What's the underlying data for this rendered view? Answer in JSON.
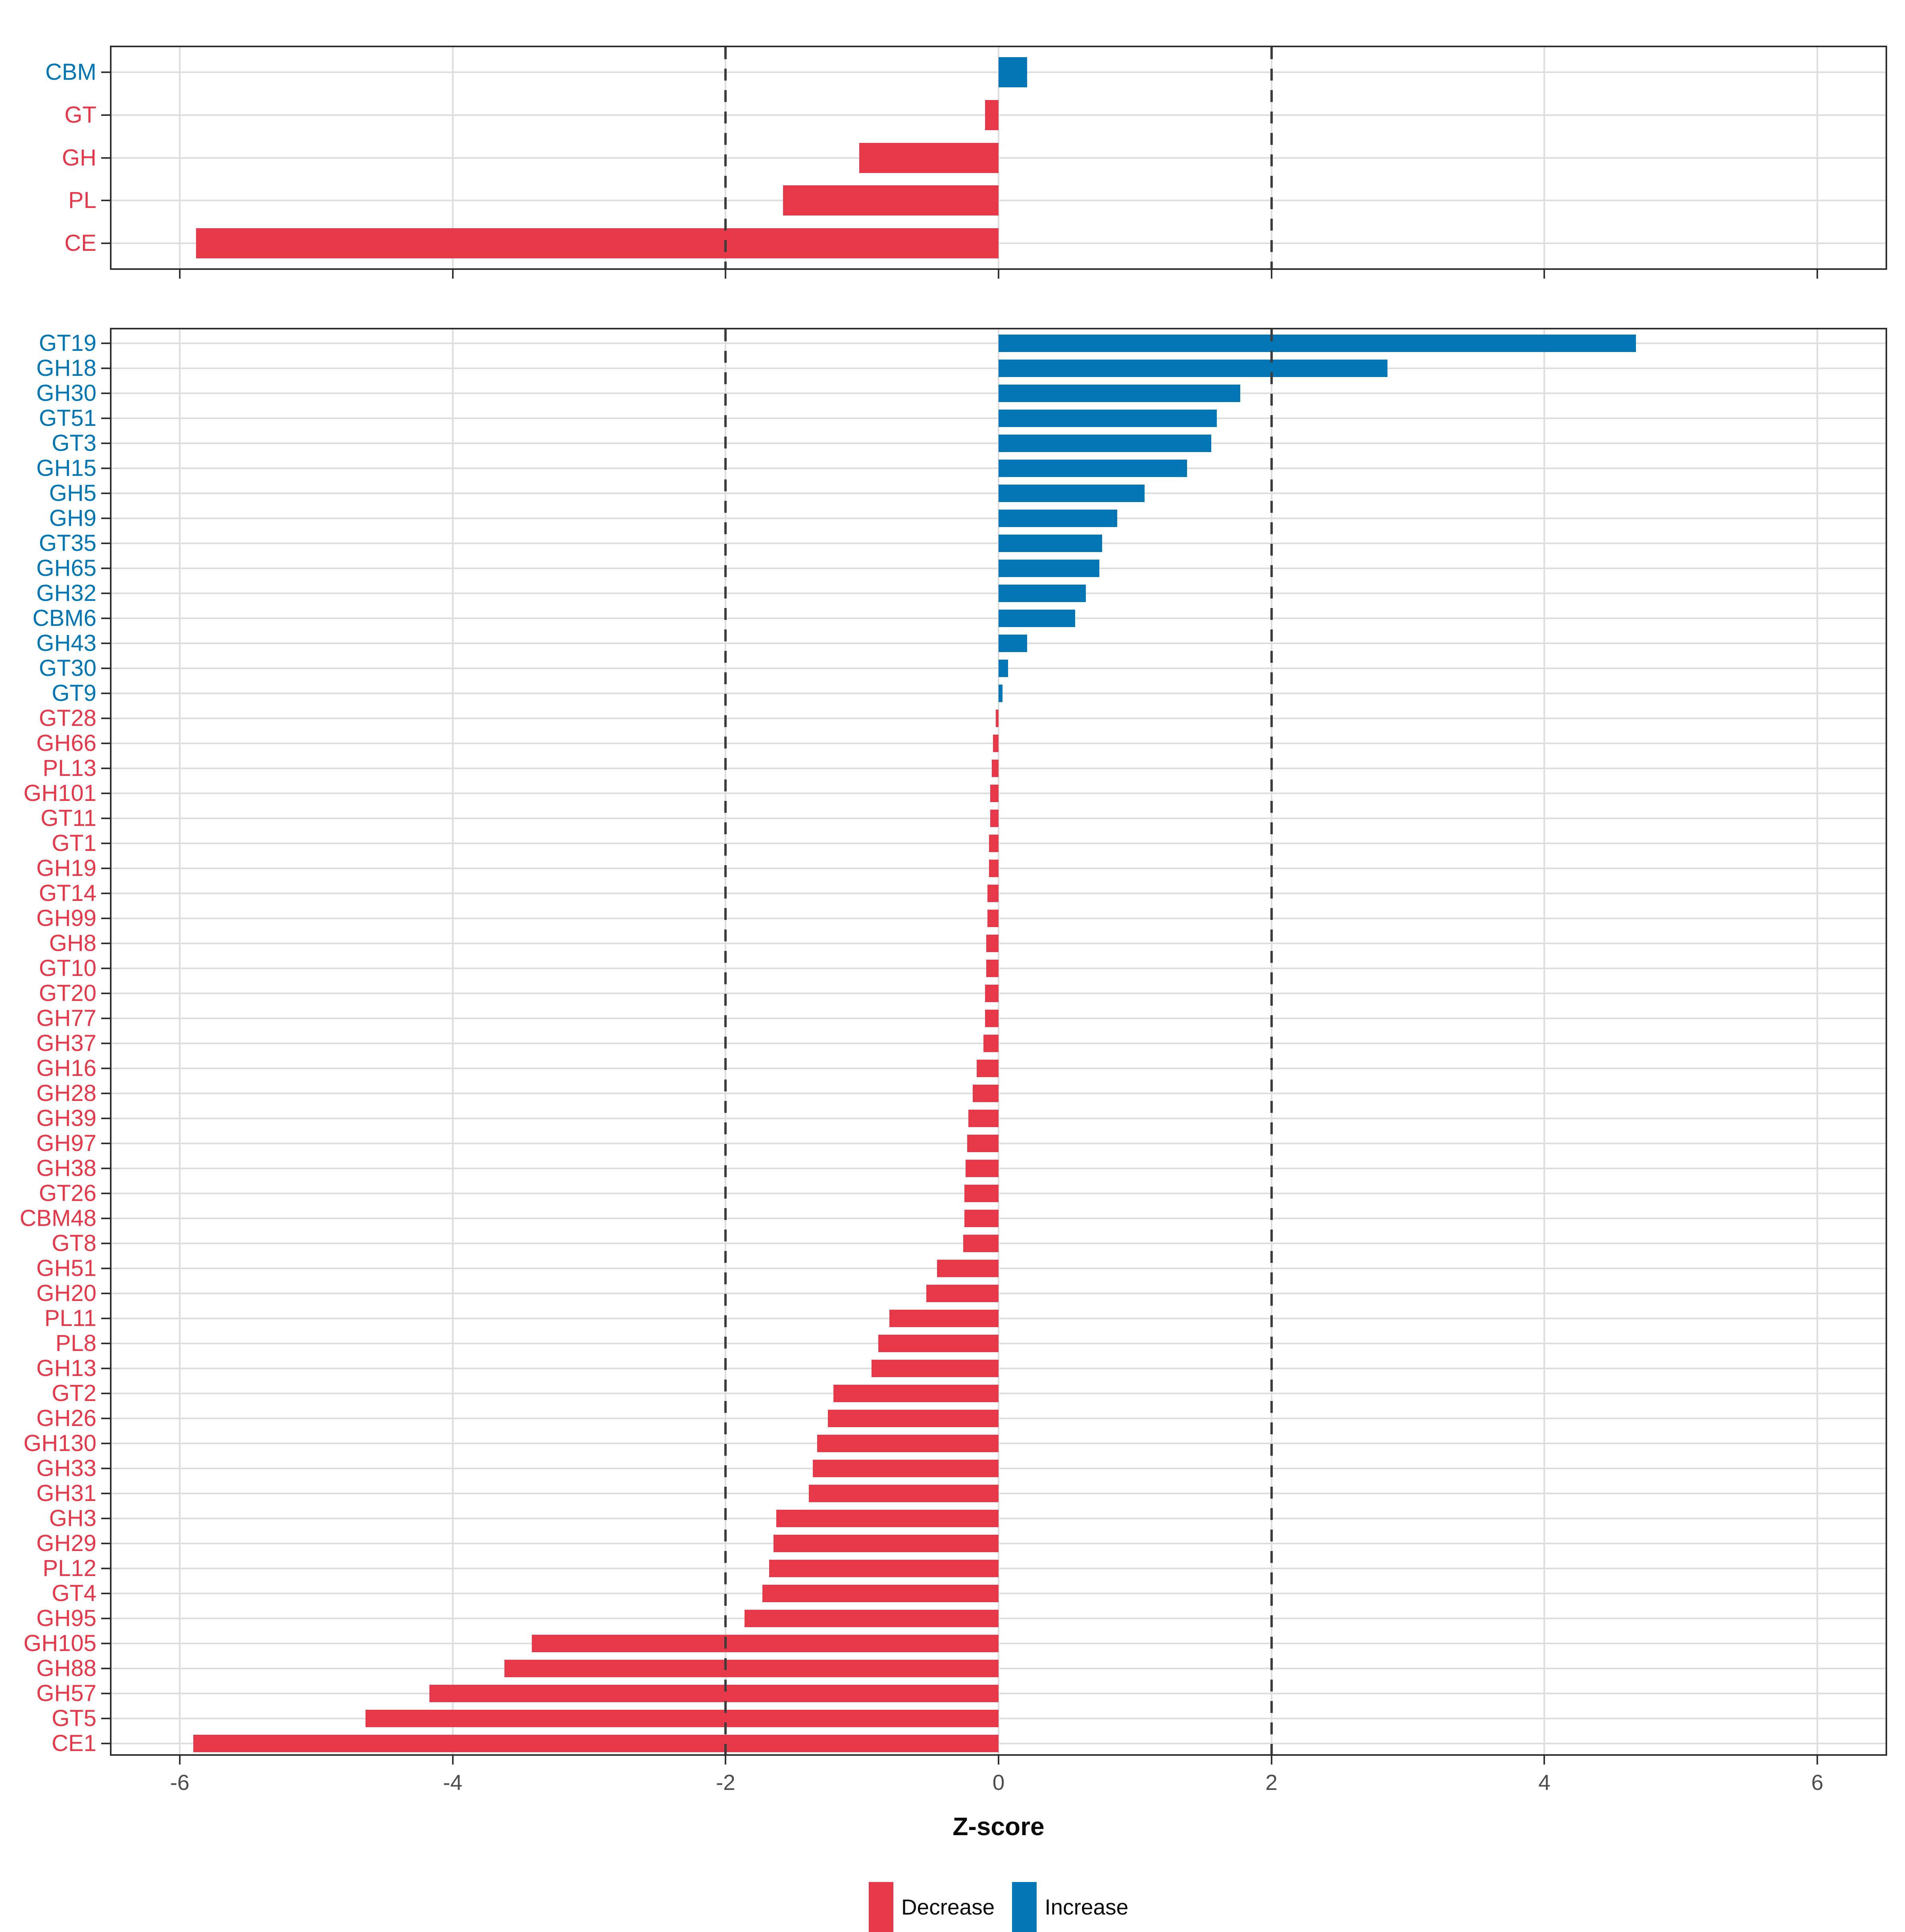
{
  "axis": {
    "title": "Z-score",
    "ticks": [
      -6,
      -4,
      -2,
      0,
      2,
      4,
      6
    ],
    "xlim": [
      -6.5,
      6.5
    ],
    "reference_lines": [
      -2,
      2
    ]
  },
  "colors": {
    "decrease": "#E63849",
    "increase": "#0276B5",
    "grid": "#DEDEDE",
    "panel_border": "#2E2E2E",
    "tick_label": "#4D4D4D"
  },
  "legend": {
    "items": [
      {
        "label": "Decrease",
        "color": "#E63849"
      },
      {
        "label": "Increase",
        "color": "#0276B5"
      }
    ]
  },
  "chart_data": [
    {
      "type": "bar",
      "orientation": "horizontal",
      "panel": "family-summary",
      "title": "",
      "xlabel": "Z-score",
      "ylabel": "",
      "xlim": [
        -6.5,
        6.5
      ],
      "grid": true,
      "categories": [
        "CBM",
        "GT",
        "GH",
        "PL",
        "CE"
      ],
      "values": [
        0.21,
        -0.1,
        -1.02,
        -1.58,
        -5.88
      ]
    },
    {
      "type": "bar",
      "orientation": "horizontal",
      "panel": "subfamily-detail",
      "title": "",
      "xlabel": "Z-score",
      "ylabel": "",
      "xlim": [
        -6.5,
        6.5
      ],
      "grid": true,
      "categories": [
        "GT19",
        "GH18",
        "GH30",
        "GT51",
        "GT3",
        "GH15",
        "GH5",
        "GH9",
        "GT35",
        "GH65",
        "GH32",
        "CBM6",
        "GH43",
        "GT30",
        "GT9",
        "GT28",
        "GH66",
        "PL13",
        "GH101",
        "GT11",
        "GT1",
        "GH19",
        "GT14",
        "GH99",
        "GH8",
        "GT10",
        "GT20",
        "GH77",
        "GH37",
        "GH16",
        "GH28",
        "GH39",
        "GH97",
        "GH38",
        "GT26",
        "CBM48",
        "GT8",
        "GH51",
        "GH20",
        "PL11",
        "PL8",
        "GH13",
        "GT2",
        "GH26",
        "GH130",
        "GH33",
        "GH31",
        "GH3",
        "GH29",
        "PL12",
        "GT4",
        "GH95",
        "GH105",
        "GH88",
        "GH57",
        "GT5",
        "CE1"
      ],
      "values": [
        4.67,
        2.85,
        1.77,
        1.6,
        1.56,
        1.38,
        1.07,
        0.87,
        0.76,
        0.74,
        0.64,
        0.56,
        0.21,
        0.07,
        0.03,
        -0.02,
        -0.04,
        -0.05,
        -0.06,
        -0.06,
        -0.07,
        -0.07,
        -0.08,
        -0.08,
        -0.09,
        -0.09,
        -0.1,
        -0.1,
        -0.11,
        -0.16,
        -0.19,
        -0.22,
        -0.23,
        -0.24,
        -0.25,
        -0.25,
        -0.26,
        -0.45,
        -0.53,
        -0.8,
        -0.88,
        -0.93,
        -1.21,
        -1.25,
        -1.33,
        -1.36,
        -1.39,
        -1.63,
        -1.65,
        -1.68,
        -1.73,
        -1.86,
        -3.42,
        -3.62,
        -4.17,
        -4.64,
        -5.9
      ]
    }
  ]
}
